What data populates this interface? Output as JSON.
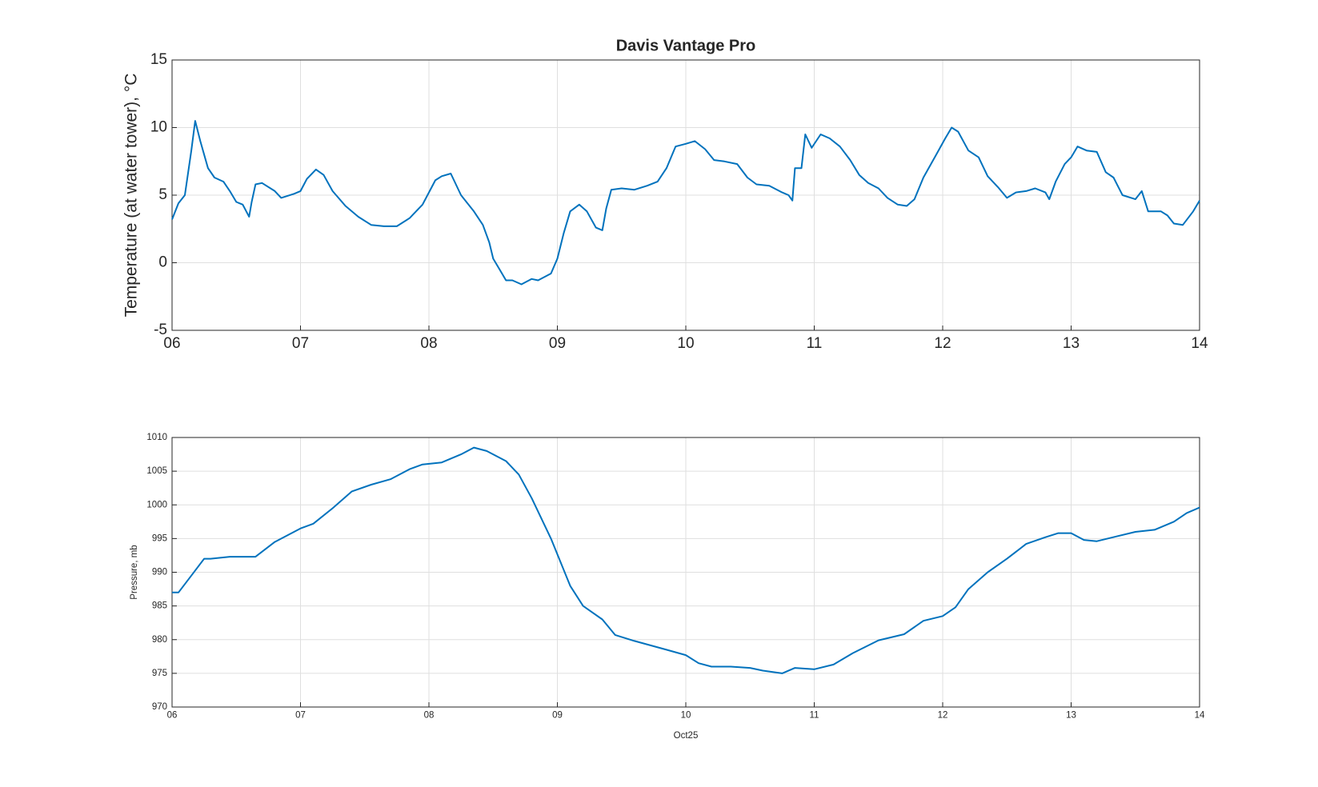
{
  "chart_data": [
    {
      "type": "line",
      "title": "Davis Vantage Pro",
      "ylabel": "Temperature (at water tower), °C",
      "color": "#0072bd",
      "grid": true,
      "xlim": [
        6,
        14
      ],
      "xticks": [
        {
          "value": 6,
          "label": "06"
        },
        {
          "value": 7,
          "label": "07"
        },
        {
          "value": 8,
          "label": "08"
        },
        {
          "value": 9,
          "label": "09"
        },
        {
          "value": 10,
          "label": "10"
        },
        {
          "value": 11,
          "label": "11"
        },
        {
          "value": 12,
          "label": "12"
        },
        {
          "value": 13,
          "label": "13"
        },
        {
          "value": 14,
          "label": "14"
        }
      ],
      "ylim": [
        -5,
        15
      ],
      "yticks": [
        -5,
        0,
        5,
        10,
        15
      ],
      "x": [
        6.0,
        6.05,
        6.1,
        6.15,
        6.18,
        6.22,
        6.28,
        6.33,
        6.4,
        6.45,
        6.5,
        6.55,
        6.6,
        6.62,
        6.65,
        6.7,
        6.8,
        6.85,
        6.95,
        7.0,
        7.05,
        7.12,
        7.18,
        7.25,
        7.35,
        7.45,
        7.55,
        7.65,
        7.75,
        7.85,
        7.95,
        8.0,
        8.05,
        8.1,
        8.17,
        8.25,
        8.35,
        8.42,
        8.47,
        8.5,
        8.55,
        8.6,
        8.65,
        8.72,
        8.8,
        8.85,
        8.95,
        9.0,
        9.05,
        9.1,
        9.17,
        9.23,
        9.3,
        9.35,
        9.38,
        9.42,
        9.5,
        9.6,
        9.7,
        9.78,
        9.85,
        9.92,
        10.0,
        10.07,
        10.15,
        10.22,
        10.3,
        10.4,
        10.48,
        10.55,
        10.65,
        10.75,
        10.8,
        10.83,
        10.85,
        10.9,
        10.93,
        10.98,
        11.05,
        11.12,
        11.2,
        11.28,
        11.35,
        11.42,
        11.5,
        11.57,
        11.65,
        11.72,
        11.78,
        11.85,
        11.95,
        12.02,
        12.07,
        12.12,
        12.2,
        12.28,
        12.35,
        12.43,
        12.5,
        12.57,
        12.65,
        12.72,
        12.8,
        12.83,
        12.88,
        12.95,
        13.0,
        13.05,
        13.12,
        13.2,
        13.27,
        13.33,
        13.4,
        13.5,
        13.55,
        13.6,
        13.7,
        13.75,
        13.8,
        13.87,
        13.95,
        14.0
      ],
      "values": [
        3.2,
        4.4,
        5.0,
        8.3,
        10.5,
        9.0,
        7.0,
        6.3,
        6.0,
        5.3,
        4.5,
        4.3,
        3.4,
        4.5,
        5.8,
        5.9,
        5.3,
        4.8,
        5.1,
        5.3,
        6.2,
        6.9,
        6.5,
        5.3,
        4.2,
        3.4,
        2.8,
        2.7,
        2.7,
        3.3,
        4.3,
        5.2,
        6.1,
        6.4,
        6.6,
        5.0,
        3.8,
        2.8,
        1.5,
        0.3,
        -0.5,
        -1.3,
        -1.3,
        -1.6,
        -1.2,
        -1.3,
        -0.8,
        0.3,
        2.2,
        3.8,
        4.3,
        3.8,
        2.6,
        2.4,
        4.0,
        5.4,
        5.5,
        5.4,
        5.7,
        6.0,
        7.0,
        8.6,
        8.8,
        9.0,
        8.4,
        7.6,
        7.5,
        7.3,
        6.3,
        5.8,
        5.7,
        5.2,
        5.0,
        4.6,
        7.0,
        7.0,
        9.5,
        8.5,
        9.5,
        9.2,
        8.6,
        7.6,
        6.5,
        5.9,
        5.5,
        4.8,
        4.3,
        4.2,
        4.7,
        6.3,
        8.0,
        9.2,
        10.0,
        9.7,
        8.3,
        7.8,
        6.4,
        5.6,
        4.8,
        5.2,
        5.3,
        5.5,
        5.2,
        4.7,
        6.0,
        7.3,
        7.8,
        8.6,
        8.3,
        8.2,
        6.7,
        6.3,
        5.0,
        4.7,
        5.3,
        3.8,
        3.8,
        3.5,
        2.9,
        2.8,
        3.8,
        4.6
      ]
    },
    {
      "type": "line",
      "ylabel": "Pressure, mb",
      "xlabel": "Oct25",
      "color": "#0072bd",
      "grid": true,
      "xlim": [
        6,
        14
      ],
      "xticks": [
        {
          "value": 6,
          "label": "06"
        },
        {
          "value": 7,
          "label": "07"
        },
        {
          "value": 8,
          "label": "08"
        },
        {
          "value": 9,
          "label": "09"
        },
        {
          "value": 10,
          "label": "10"
        },
        {
          "value": 11,
          "label": "11"
        },
        {
          "value": 12,
          "label": "12"
        },
        {
          "value": 13,
          "label": "13"
        },
        {
          "value": 14,
          "label": "14"
        }
      ],
      "ylim": [
        970,
        1010
      ],
      "yticks": [
        970,
        975,
        980,
        985,
        990,
        995,
        1000,
        1005,
        1010
      ],
      "x": [
        6.0,
        6.05,
        6.15,
        6.25,
        6.3,
        6.45,
        6.65,
        6.8,
        7.0,
        7.1,
        7.25,
        7.4,
        7.55,
        7.7,
        7.85,
        7.95,
        8.1,
        8.25,
        8.35,
        8.45,
        8.6,
        8.7,
        8.8,
        8.95,
        9.1,
        9.2,
        9.35,
        9.45,
        9.6,
        9.85,
        10.0,
        10.1,
        10.2,
        10.35,
        10.5,
        10.6,
        10.75,
        10.85,
        11.0,
        11.15,
        11.3,
        11.5,
        11.7,
        11.85,
        12.0,
        12.1,
        12.2,
        12.35,
        12.5,
        12.65,
        12.8,
        12.9,
        13.0,
        13.1,
        13.2,
        13.35,
        13.5,
        13.65,
        13.8,
        13.9,
        14.0
      ],
      "values": [
        987,
        987,
        989.5,
        992,
        992,
        992.3,
        992.3,
        994.5,
        996.5,
        997.2,
        999.5,
        1002,
        1003,
        1003.8,
        1005.3,
        1006,
        1006.3,
        1007.5,
        1008.5,
        1008,
        1006.5,
        1004.5,
        1001,
        995,
        988,
        985,
        983,
        980.7,
        979.8,
        978.5,
        977.7,
        976.5,
        976,
        976,
        975.8,
        975.4,
        975,
        975.8,
        975.6,
        976.3,
        978,
        979.9,
        980.8,
        982.8,
        983.5,
        984.8,
        987.5,
        990,
        992,
        994.2,
        995.2,
        995.8,
        995.8,
        994.8,
        994.6,
        995.3,
        996,
        996.3,
        997.5,
        998.8,
        999.6
      ]
    }
  ]
}
